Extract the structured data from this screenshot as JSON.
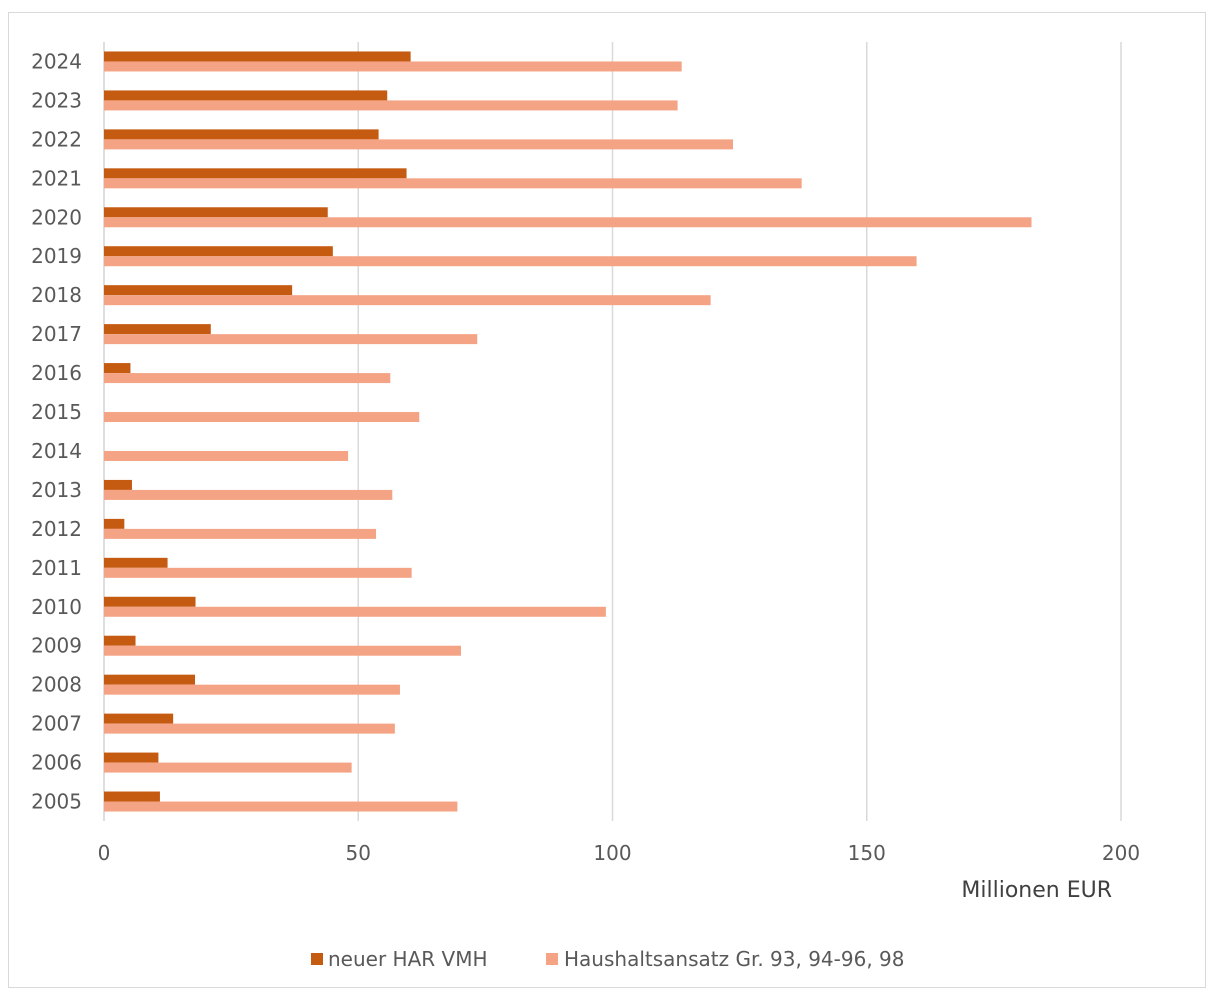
{
  "chart_data": {
    "type": "bar",
    "orientation": "horizontal",
    "categories": [
      "2005",
      "2006",
      "2007",
      "2008",
      "2009",
      "2010",
      "2011",
      "2012",
      "2013",
      "2014",
      "2015",
      "2016",
      "2017",
      "2018",
      "2019",
      "2020",
      "2021",
      "2022",
      "2023",
      "2024"
    ],
    "series": [
      {
        "name": "neuer HAR VMH",
        "color": "#C55A11",
        "values": [
          11,
          10.7,
          13.6,
          17.9,
          6.2,
          18,
          12.5,
          4,
          5.5,
          0,
          0,
          5.2,
          21,
          37,
          45,
          44,
          59.5,
          54,
          55.7,
          60.3
        ]
      },
      {
        "name": "Haushaltsansatz Gr. 93, 94-96, 98",
        "color": "#F4A484",
        "values": [
          69.5,
          48.7,
          57.2,
          58.2,
          70.2,
          98.7,
          60.5,
          53.5,
          56.7,
          48,
          62,
          56.3,
          73.4,
          119.3,
          159.8,
          182.4,
          137.2,
          123.7,
          112.8,
          113.6
        ]
      }
    ],
    "xlabel": "Millionen EUR",
    "xlim": [
      0,
      200
    ],
    "xticks": [
      0,
      50,
      100,
      150,
      200
    ],
    "grid": "vertical",
    "legend": "bottom"
  }
}
